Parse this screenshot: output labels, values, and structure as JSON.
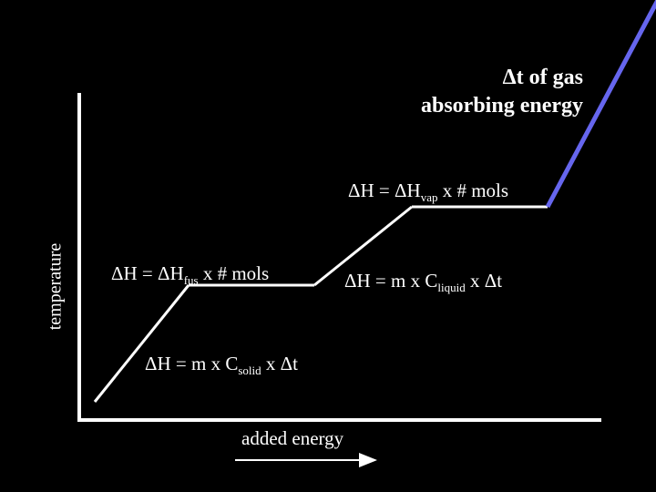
{
  "diagram": {
    "y_axis_label": "temperature",
    "x_axis_label": "added energy",
    "gas_label": {
      "line1": "Δt of gas",
      "line2": "absorbing energy"
    },
    "vap_label": {
      "prefix": "ΔH = ΔH",
      "sub": "vap",
      "suffix": " x # mols"
    },
    "fus_label": {
      "prefix": "ΔH = ΔH",
      "sub": "fus",
      "suffix": " x # mols"
    },
    "liquid_label": {
      "prefix": "ΔH = m x C",
      "sub": "liquid",
      "suffix": " x Δt"
    },
    "solid_label": {
      "prefix": "ΔH = m x C",
      "sub": "solid",
      "suffix": " x Δt"
    },
    "colors": {
      "background": "#000000",
      "curve": "#ffffff",
      "gas_segment": "#6666ee",
      "text": "#ffffff"
    }
  }
}
